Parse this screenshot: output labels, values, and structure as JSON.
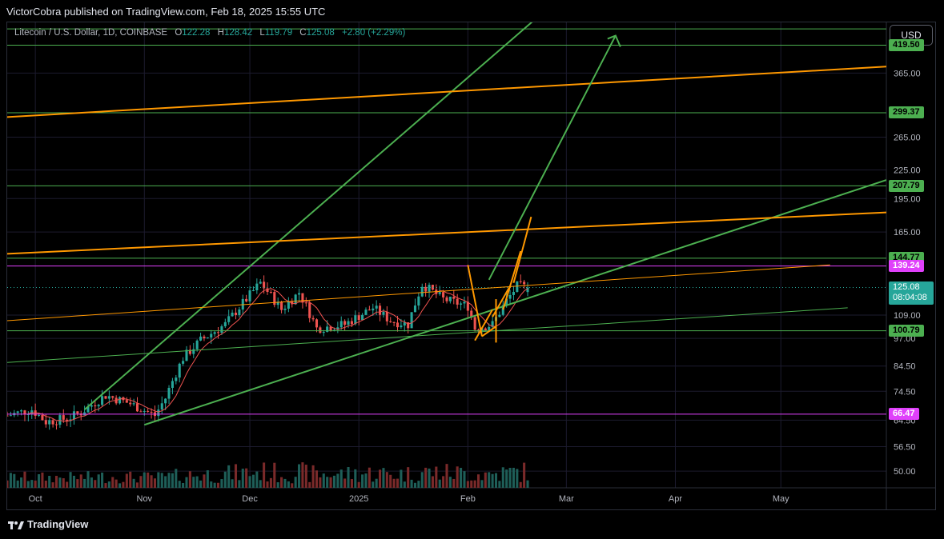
{
  "publisher_line": "VictorCobra published on TradingView.com, Feb 18, 2025 15:55 UTC",
  "legend": {
    "symbol": "Litecoin / U.S. Dollar, 1D, COINBASE",
    "o_key": "O",
    "o": "122.28",
    "h_key": "H",
    "h": "128.42",
    "l_key": "L",
    "l": "119.79",
    "c_key": "C",
    "c": "125.08",
    "change": "+2.80 (+2.29%)"
  },
  "currency_button": "USD",
  "brand": "TradingView",
  "colors": {
    "up": "#26a69a",
    "down": "#ef5350",
    "green_line": "#4caf50",
    "orange_line": "#ff9800",
    "magenta_line": "#e040fb",
    "grid": "#1c1b2e"
  },
  "chart_data": {
    "type": "candlestick",
    "symbol": "Litecoin / U.S. Dollar",
    "interval": "1D",
    "exchange": "COINBASE",
    "y_scale": "log",
    "ylim": [
      46,
      470
    ],
    "xlim": [
      "2024-09-23",
      "2025-05-31"
    ],
    "x_tick_labels": [
      {
        "date": "2024-10-01",
        "label": "Oct"
      },
      {
        "date": "2024-11-01",
        "label": "Nov"
      },
      {
        "date": "2024-12-01",
        "label": "Dec"
      },
      {
        "date": "2025-01-01",
        "label": "2025"
      },
      {
        "date": "2025-02-01",
        "label": "Feb"
      },
      {
        "date": "2025-03-01",
        "label": "Mar"
      },
      {
        "date": "2025-04-01",
        "label": "Apr"
      },
      {
        "date": "2025-05-01",
        "label": "May"
      }
    ],
    "y_tick_labels": [
      "365.00",
      "265.00",
      "225.00",
      "195.00",
      "165.00",
      "109.00",
      "97.00",
      "84.50",
      "74.50",
      "64.50",
      "56.50",
      "50.00"
    ],
    "last_price": {
      "value": 125.08,
      "label": "125.08",
      "countdown": "08:04:08"
    },
    "horizontal_levels": [
      {
        "value": 419.5,
        "label": "419.50",
        "color": "#4caf50"
      },
      {
        "value": 299.37,
        "label": "299.37",
        "color": "#4caf50"
      },
      {
        "value": 207.79,
        "label": "207.79",
        "color": "#4caf50"
      },
      {
        "value": 144.77,
        "label": "144.77",
        "color": "#4caf50"
      },
      {
        "value": 139.24,
        "label": "139.24",
        "color": "#e040fb"
      },
      {
        "value": 100.79,
        "label": "100.79",
        "color": "#4caf50"
      },
      {
        "value": 66.47,
        "label": "66.47",
        "color": "#e040fb"
      }
    ],
    "extra_levels": [
      {
        "value": 455,
        "color": "#4caf50"
      }
    ],
    "trendlines": [
      {
        "color": "#4caf50",
        "width": 2,
        "from": [
          "2024-10-15",
          68
        ],
        "to": [
          "2025-02-27",
          530
        ]
      },
      {
        "color": "#4caf50",
        "width": 2,
        "from": [
          "2024-11-01",
          63
        ],
        "to": [
          "2025-05-31",
          214
        ]
      },
      {
        "color": "#4caf50",
        "width": 1,
        "from": [
          "2024-09-23",
          86
        ],
        "to": [
          "2025-05-20",
          113
        ]
      },
      {
        "color": "#ff9800",
        "width": 2,
        "from": [
          "2024-09-23",
          293
        ],
        "to": [
          "2025-05-31",
          377
        ]
      },
      {
        "color": "#ff9800",
        "width": 2,
        "from": [
          "2024-09-23",
          148
        ],
        "to": [
          "2025-05-31",
          182
        ]
      },
      {
        "color": "#ff9800",
        "width": 1,
        "from": [
          "2024-09-23",
          106
        ],
        "to": [
          "2025-05-15",
          140
        ]
      },
      {
        "color": "#4caf50",
        "width": 2,
        "arrow": true,
        "from": [
          "2025-02-07",
          130
        ],
        "to": [
          "2025-03-15",
          440
        ]
      }
    ],
    "candles": [],
    "sma_period": 7
  }
}
